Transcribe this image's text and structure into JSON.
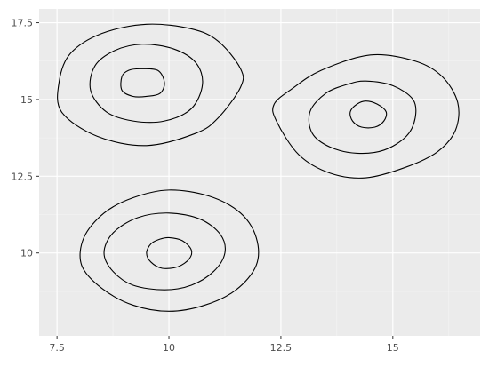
{
  "chart_data": {
    "type": "contour",
    "title": "",
    "xlabel": "",
    "ylabel": "",
    "xlim": [
      7.1,
      16.95
    ],
    "ylim": [
      7.3,
      17.95
    ],
    "grid": true,
    "legend": "none",
    "colors": {
      "panel_background": "#ebebeb",
      "grid_major": "#ffffff",
      "grid_minor": "#f5f5f5",
      "contour": "#000000",
      "tick_text": "#4d4d4d",
      "tick_mark": "#333333"
    },
    "x_ticks": [
      {
        "value": 7.5,
        "label": "7.5"
      },
      {
        "value": 10,
        "label": "10"
      },
      {
        "value": 12.5,
        "label": "12.5"
      },
      {
        "value": 15,
        "label": "15"
      }
    ],
    "y_ticks": [
      {
        "value": 10,
        "label": "10"
      },
      {
        "value": 12.5,
        "label": "12.5"
      },
      {
        "value": 15,
        "label": "15"
      },
      {
        "value": 17.5,
        "label": "17.5"
      }
    ],
    "contours": [
      {
        "cluster": "top-left",
        "points": [
          [
            9.5,
            17.45
          ],
          [
            10.5,
            17.3
          ],
          [
            11.1,
            16.9
          ],
          [
            11.6,
            16.0
          ],
          [
            11.6,
            15.4
          ],
          [
            11.1,
            14.4
          ],
          [
            10.6,
            13.9
          ],
          [
            9.5,
            13.5
          ],
          [
            8.4,
            13.8
          ],
          [
            7.6,
            14.6
          ],
          [
            7.55,
            15.6
          ],
          [
            7.8,
            16.5
          ],
          [
            8.5,
            17.15
          ]
        ]
      },
      {
        "cluster": "top-left",
        "points": [
          [
            9.4,
            16.8
          ],
          [
            10.1,
            16.65
          ],
          [
            10.6,
            16.2
          ],
          [
            10.75,
            15.5
          ],
          [
            10.5,
            14.7
          ],
          [
            9.9,
            14.3
          ],
          [
            9.2,
            14.3
          ],
          [
            8.6,
            14.6
          ],
          [
            8.25,
            15.3
          ],
          [
            8.35,
            16.1
          ],
          [
            8.8,
            16.6
          ]
        ]
      },
      {
        "cluster": "top-left",
        "points": [
          [
            9.35,
            16.0
          ],
          [
            9.75,
            15.95
          ],
          [
            9.9,
            15.55
          ],
          [
            9.8,
            15.2
          ],
          [
            9.5,
            15.1
          ],
          [
            9.2,
            15.1
          ],
          [
            8.95,
            15.3
          ],
          [
            8.95,
            15.75
          ],
          [
            9.1,
            15.95
          ]
        ]
      },
      {
        "cluster": "top-right",
        "points": [
          [
            14.5,
            16.45
          ],
          [
            15.5,
            16.25
          ],
          [
            16.1,
            15.75
          ],
          [
            16.45,
            14.9
          ],
          [
            16.4,
            14.0
          ],
          [
            16.0,
            13.3
          ],
          [
            15.3,
            12.8
          ],
          [
            14.4,
            12.45
          ],
          [
            13.6,
            12.6
          ],
          [
            12.9,
            13.2
          ],
          [
            12.4,
            14.3
          ],
          [
            12.35,
            14.85
          ],
          [
            12.75,
            15.35
          ],
          [
            13.4,
            15.95
          ]
        ]
      },
      {
        "cluster": "top-right",
        "points": [
          [
            14.4,
            15.6
          ],
          [
            15.0,
            15.45
          ],
          [
            15.45,
            15.0
          ],
          [
            15.5,
            14.4
          ],
          [
            15.3,
            13.8
          ],
          [
            14.8,
            13.35
          ],
          [
            14.2,
            13.25
          ],
          [
            13.6,
            13.45
          ],
          [
            13.2,
            13.9
          ],
          [
            13.15,
            14.6
          ],
          [
            13.5,
            15.2
          ],
          [
            14.0,
            15.5
          ]
        ]
      },
      {
        "cluster": "top-right",
        "points": [
          [
            14.4,
            14.95
          ],
          [
            14.65,
            14.85
          ],
          [
            14.85,
            14.6
          ],
          [
            14.8,
            14.3
          ],
          [
            14.6,
            14.1
          ],
          [
            14.3,
            14.1
          ],
          [
            14.1,
            14.3
          ],
          [
            14.05,
            14.6
          ],
          [
            14.2,
            14.85
          ]
        ]
      },
      {
        "cluster": "bottom-left",
        "points": [
          [
            10.0,
            12.05
          ],
          [
            10.9,
            11.85
          ],
          [
            11.6,
            11.3
          ],
          [
            11.95,
            10.5
          ],
          [
            11.95,
            9.6
          ],
          [
            11.5,
            8.8
          ],
          [
            10.8,
            8.3
          ],
          [
            10.0,
            8.1
          ],
          [
            9.2,
            8.3
          ],
          [
            8.5,
            8.85
          ],
          [
            8.05,
            9.6
          ],
          [
            8.1,
            10.5
          ],
          [
            8.55,
            11.3
          ],
          [
            9.2,
            11.8
          ]
        ]
      },
      {
        "cluster": "bottom-left",
        "points": [
          [
            10.0,
            11.3
          ],
          [
            10.7,
            11.1
          ],
          [
            11.15,
            10.6
          ],
          [
            11.25,
            10.0
          ],
          [
            11.0,
            9.4
          ],
          [
            10.5,
            8.95
          ],
          [
            9.9,
            8.8
          ],
          [
            9.2,
            8.95
          ],
          [
            8.75,
            9.4
          ],
          [
            8.55,
            10.0
          ],
          [
            8.75,
            10.65
          ],
          [
            9.3,
            11.15
          ]
        ]
      },
      {
        "cluster": "bottom-left",
        "points": [
          [
            10.0,
            10.5
          ],
          [
            10.3,
            10.4
          ],
          [
            10.5,
            10.1
          ],
          [
            10.45,
            9.8
          ],
          [
            10.2,
            9.55
          ],
          [
            9.85,
            9.5
          ],
          [
            9.6,
            9.7
          ],
          [
            9.5,
            10.0
          ],
          [
            9.6,
            10.3
          ],
          [
            9.8,
            10.45
          ]
        ]
      }
    ]
  }
}
